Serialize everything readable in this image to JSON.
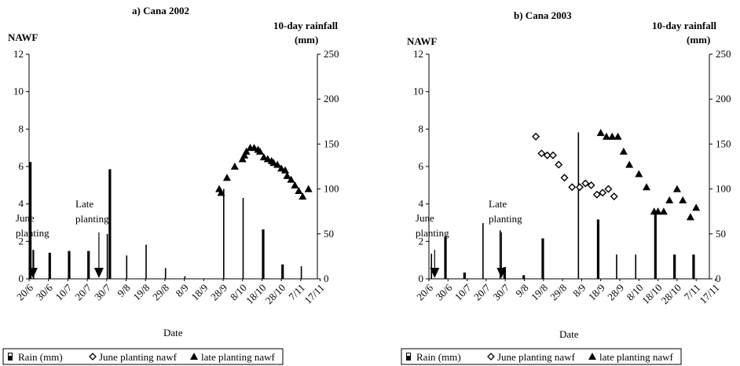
{
  "chart_data": [
    {
      "type": "bar+scatter",
      "title": "a) Cana 2002",
      "ylabel_left": "NAWF",
      "ylabel_right": [
        "10-day rainfall",
        "(mm)"
      ],
      "xlabel": "Date",
      "ylim_left": [
        0,
        12
      ],
      "yticks_left": [
        "0",
        "2",
        "4",
        "6",
        "8",
        "10",
        "12"
      ],
      "ylim_right": [
        0,
        250
      ],
      "yticks_right": [
        "0",
        "50",
        "100",
        "150",
        "200",
        "250"
      ],
      "x_tick_labels": [
        "20/6",
        "30/6",
        "10/7",
        "20/7",
        "30/7",
        "9/8",
        "19/8",
        "29/8",
        "8/9",
        "18/9",
        "28/9",
        "8/10",
        "18/10",
        "28/10",
        "7/11",
        "17/11"
      ],
      "x_range_days": [
        0,
        150
      ],
      "rain_bars": [
        {
          "x": 0,
          "w": 2,
          "y": 130
        },
        {
          "x": 2,
          "w": 1,
          "y": 32
        },
        {
          "x": 10,
          "w": 2,
          "y": 29
        },
        {
          "x": 20,
          "w": 2,
          "y": 31
        },
        {
          "x": 30,
          "w": 2,
          "y": 31
        },
        {
          "x": 40,
          "w": 1,
          "y": 50
        },
        {
          "x": 41,
          "w": 2,
          "y": 122
        },
        {
          "x": 50,
          "w": 1,
          "y": 26
        },
        {
          "x": 60,
          "w": 1,
          "y": 38
        },
        {
          "x": 70,
          "w": 1,
          "y": 12
        },
        {
          "x": 80,
          "w": 1,
          "y": 3
        },
        {
          "x": 100,
          "w": 1,
          "y": 100
        },
        {
          "x": 110,
          "w": 1,
          "y": 90
        },
        {
          "x": 120,
          "w": 2,
          "y": 55
        },
        {
          "x": 130,
          "w": 2,
          "y": 16
        },
        {
          "x": 140,
          "w": 1,
          "y": 14
        }
      ],
      "series": [
        {
          "name": "late planting nawf",
          "marker": "triangle",
          "x": [
            98,
            99,
            102,
            106,
            110,
            111,
            112,
            114,
            116,
            118,
            119,
            121,
            123,
            125,
            126,
            128,
            130,
            132,
            133,
            135,
            137,
            139,
            141,
            144
          ],
          "y": [
            4.8,
            4.6,
            5.4,
            6.0,
            6.4,
            6.6,
            6.8,
            7.0,
            7.0,
            6.9,
            6.8,
            6.5,
            6.4,
            6.3,
            6.2,
            6.1,
            5.9,
            5.8,
            5.5,
            5.3,
            5.0,
            4.7,
            4.4,
            4.8
          ]
        }
      ],
      "annotations": [
        {
          "text": [
            "June",
            "planting"
          ],
          "arrow_x": 2
        },
        {
          "text": [
            "Late",
            "planting"
          ],
          "arrow_x": 36
        }
      ]
    },
    {
      "type": "bar+scatter",
      "title": "b) Cana 2003",
      "ylabel_left": "NAWF",
      "ylabel_right": [
        "10-day rainfall",
        "(mm)"
      ],
      "xlabel": "Date",
      "ylim_left": [
        0,
        12
      ],
      "yticks_left": [
        "0",
        "2",
        "4",
        "6",
        "8",
        "10",
        "12"
      ],
      "ylim_right": [
        0,
        250
      ],
      "yticks_right": [
        "0",
        "50",
        "100",
        "150",
        "200",
        "250"
      ],
      "x_tick_labels": [
        "20/6",
        "30/6",
        "10/7",
        "20/7",
        "30/7",
        "9/8",
        "19/8",
        "29/8",
        "8/9",
        "18/9",
        "28/9",
        "8/10",
        "18/10",
        "28/10",
        "7/11",
        "17/11"
      ],
      "x_range_days": [
        0,
        150
      ],
      "rain_bars": [
        {
          "x": 1,
          "w": 1,
          "y": 28
        },
        {
          "x": 8,
          "w": 2,
          "y": 47
        },
        {
          "x": 18,
          "w": 2,
          "y": 7
        },
        {
          "x": 28,
          "w": 1,
          "y": 62
        },
        {
          "x": 37,
          "w": 1,
          "y": 54
        },
        {
          "x": 39,
          "w": 2,
          "y": 13
        },
        {
          "x": 49,
          "w": 2,
          "y": 4
        },
        {
          "x": 59,
          "w": 2,
          "y": 45
        },
        {
          "x": 78,
          "w": 1,
          "y": 163
        },
        {
          "x": 88,
          "w": 2,
          "y": 66
        },
        {
          "x": 98,
          "w": 1,
          "y": 27
        },
        {
          "x": 108,
          "w": 1,
          "y": 27
        },
        {
          "x": 118,
          "w": 2,
          "y": 72
        },
        {
          "x": 128,
          "w": 2,
          "y": 27
        },
        {
          "x": 138,
          "w": 2,
          "y": 27
        }
      ],
      "series": [
        {
          "name": "June planting nawf",
          "marker": "diamond",
          "x": [
            56,
            59,
            62,
            65,
            68,
            71,
            75,
            79,
            82,
            85,
            88,
            91,
            94,
            97
          ],
          "y": [
            7.6,
            6.7,
            6.6,
            6.6,
            6.1,
            5.4,
            4.9,
            4.9,
            5.1,
            5.0,
            4.5,
            4.6,
            4.8,
            4.4
          ]
        },
        {
          "name": "late planting nawf",
          "marker": "triangle",
          "x": [
            90,
            93,
            96,
            99,
            102,
            105,
            110,
            114,
            118,
            120,
            123,
            126,
            130,
            133,
            137,
            140
          ],
          "y": [
            7.8,
            7.6,
            7.6,
            7.6,
            6.8,
            6.1,
            5.6,
            4.9,
            3.6,
            3.6,
            3.6,
            4.2,
            4.8,
            4.2,
            3.3,
            3.8
          ]
        }
      ],
      "annotations": [
        {
          "text": [
            "June",
            "planting"
          ],
          "arrow_x": 3
        },
        {
          "text": [
            "Late",
            "planting"
          ],
          "arrow_x": 38
        }
      ]
    }
  ],
  "legend": {
    "rain": "Rain (mm)",
    "june": "June planting nawf",
    "late": "late planting nawf"
  }
}
